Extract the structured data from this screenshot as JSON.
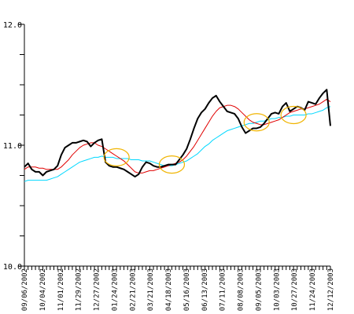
{
  "chart_data": {
    "type": "line",
    "ylim": [
      10.0,
      12.0
    ],
    "yticks": [
      "10.0",
      "11.0",
      "12.0"
    ],
    "y_minor_step": 0.25,
    "grid": false,
    "legend": "none",
    "colors": {
      "price": "#000000",
      "ma_short": "#e00000",
      "ma_long": "#00d8ff",
      "highlight": "#f0b400",
      "axis": "#000000"
    },
    "x_tick_labels": [
      "09/06/2002",
      "10/04/2002",
      "11/01/2002",
      "11/29/2002",
      "12/27/2002",
      "01/24/2003",
      "02/21/2003",
      "03/21/2003",
      "04/18/2003",
      "05/16/2003",
      "06/13/2003",
      "07/11/2003",
      "08/08/2003",
      "09/05/2003",
      "10/03/2003",
      "10/27/2003",
      "11/24/2003",
      "12/12/2003"
    ],
    "series": [
      {
        "key": "price",
        "values": [
          10.82,
          10.85,
          10.8,
          10.78,
          10.78,
          10.75,
          10.78,
          10.79,
          10.8,
          10.83,
          10.92,
          10.98,
          11.0,
          11.02,
          11.02,
          11.03,
          11.04,
          11.03,
          10.99,
          11.02,
          11.04,
          11.05,
          10.86,
          10.83,
          10.82,
          10.82,
          10.81,
          10.8,
          10.78,
          10.76,
          10.74,
          10.76,
          10.82,
          10.86,
          10.85,
          10.83,
          10.82,
          10.82,
          10.83,
          10.84,
          10.84,
          10.84,
          10.88,
          10.92,
          10.97,
          11.05,
          11.14,
          11.22,
          11.27,
          11.3,
          11.35,
          11.39,
          11.41,
          11.36,
          11.32,
          11.28,
          11.27,
          11.26,
          11.22,
          11.15,
          11.1,
          11.12,
          11.14,
          11.14,
          11.15,
          11.18,
          11.22,
          11.26,
          11.27,
          11.26,
          11.32,
          11.35,
          11.28,
          11.3,
          11.32,
          11.31,
          11.29,
          11.36,
          11.35,
          11.34,
          11.39,
          11.43,
          11.46,
          11.16
        ]
      },
      {
        "key": "ma_short",
        "values": [
          10.8,
          10.82,
          10.82,
          10.82,
          10.81,
          10.81,
          10.8,
          10.8,
          10.8,
          10.8,
          10.82,
          10.85,
          10.88,
          10.92,
          10.95,
          10.98,
          11.0,
          11.01,
          11.02,
          11.02,
          11.0,
          10.99,
          10.97,
          10.95,
          10.93,
          10.91,
          10.89,
          10.87,
          10.84,
          10.81,
          10.78,
          10.77,
          10.77,
          10.78,
          10.79,
          10.79,
          10.8,
          10.81,
          10.82,
          10.83,
          10.84,
          10.85,
          10.86,
          10.88,
          10.91,
          10.95,
          10.99,
          11.04,
          11.09,
          11.14,
          11.19,
          11.24,
          11.28,
          11.31,
          11.32,
          11.33,
          11.33,
          11.32,
          11.3,
          11.27,
          11.24,
          11.21,
          11.19,
          11.18,
          11.17,
          11.17,
          11.18,
          11.19,
          11.2,
          11.21,
          11.23,
          11.25,
          11.27,
          11.28,
          11.29,
          11.3,
          11.3,
          11.31,
          11.32,
          11.33,
          11.34,
          11.36,
          11.38,
          11.36
        ]
      },
      {
        "key": "ma_long",
        "values": [
          10.7,
          10.71,
          10.71,
          10.71,
          10.71,
          10.71,
          10.71,
          10.72,
          10.73,
          10.74,
          10.76,
          10.78,
          10.8,
          10.82,
          10.84,
          10.86,
          10.87,
          10.88,
          10.89,
          10.9,
          10.9,
          10.91,
          10.9,
          10.9,
          10.9,
          10.89,
          10.89,
          10.89,
          10.89,
          10.88,
          10.88,
          10.88,
          10.87,
          10.87,
          10.87,
          10.86,
          10.85,
          10.84,
          10.83,
          10.83,
          10.83,
          10.84,
          10.85,
          10.86,
          10.87,
          10.89,
          10.91,
          10.93,
          10.96,
          10.99,
          11.01,
          11.04,
          11.06,
          11.08,
          11.1,
          11.12,
          11.13,
          11.14,
          11.15,
          11.16,
          11.17,
          11.18,
          11.18,
          11.19,
          11.2,
          11.2,
          11.21,
          11.22,
          11.22,
          11.23,
          11.23,
          11.24,
          11.24,
          11.25,
          11.25,
          11.25,
          11.25,
          11.26,
          11.26,
          11.27,
          11.28,
          11.29,
          11.31,
          11.32
        ]
      }
    ],
    "highlights": [
      {
        "index": 25,
        "value": 10.9
      },
      {
        "index": 40,
        "value": 10.84
      },
      {
        "index": 63,
        "value": 11.19
      },
      {
        "index": 73,
        "value": 11.25
      }
    ]
  }
}
